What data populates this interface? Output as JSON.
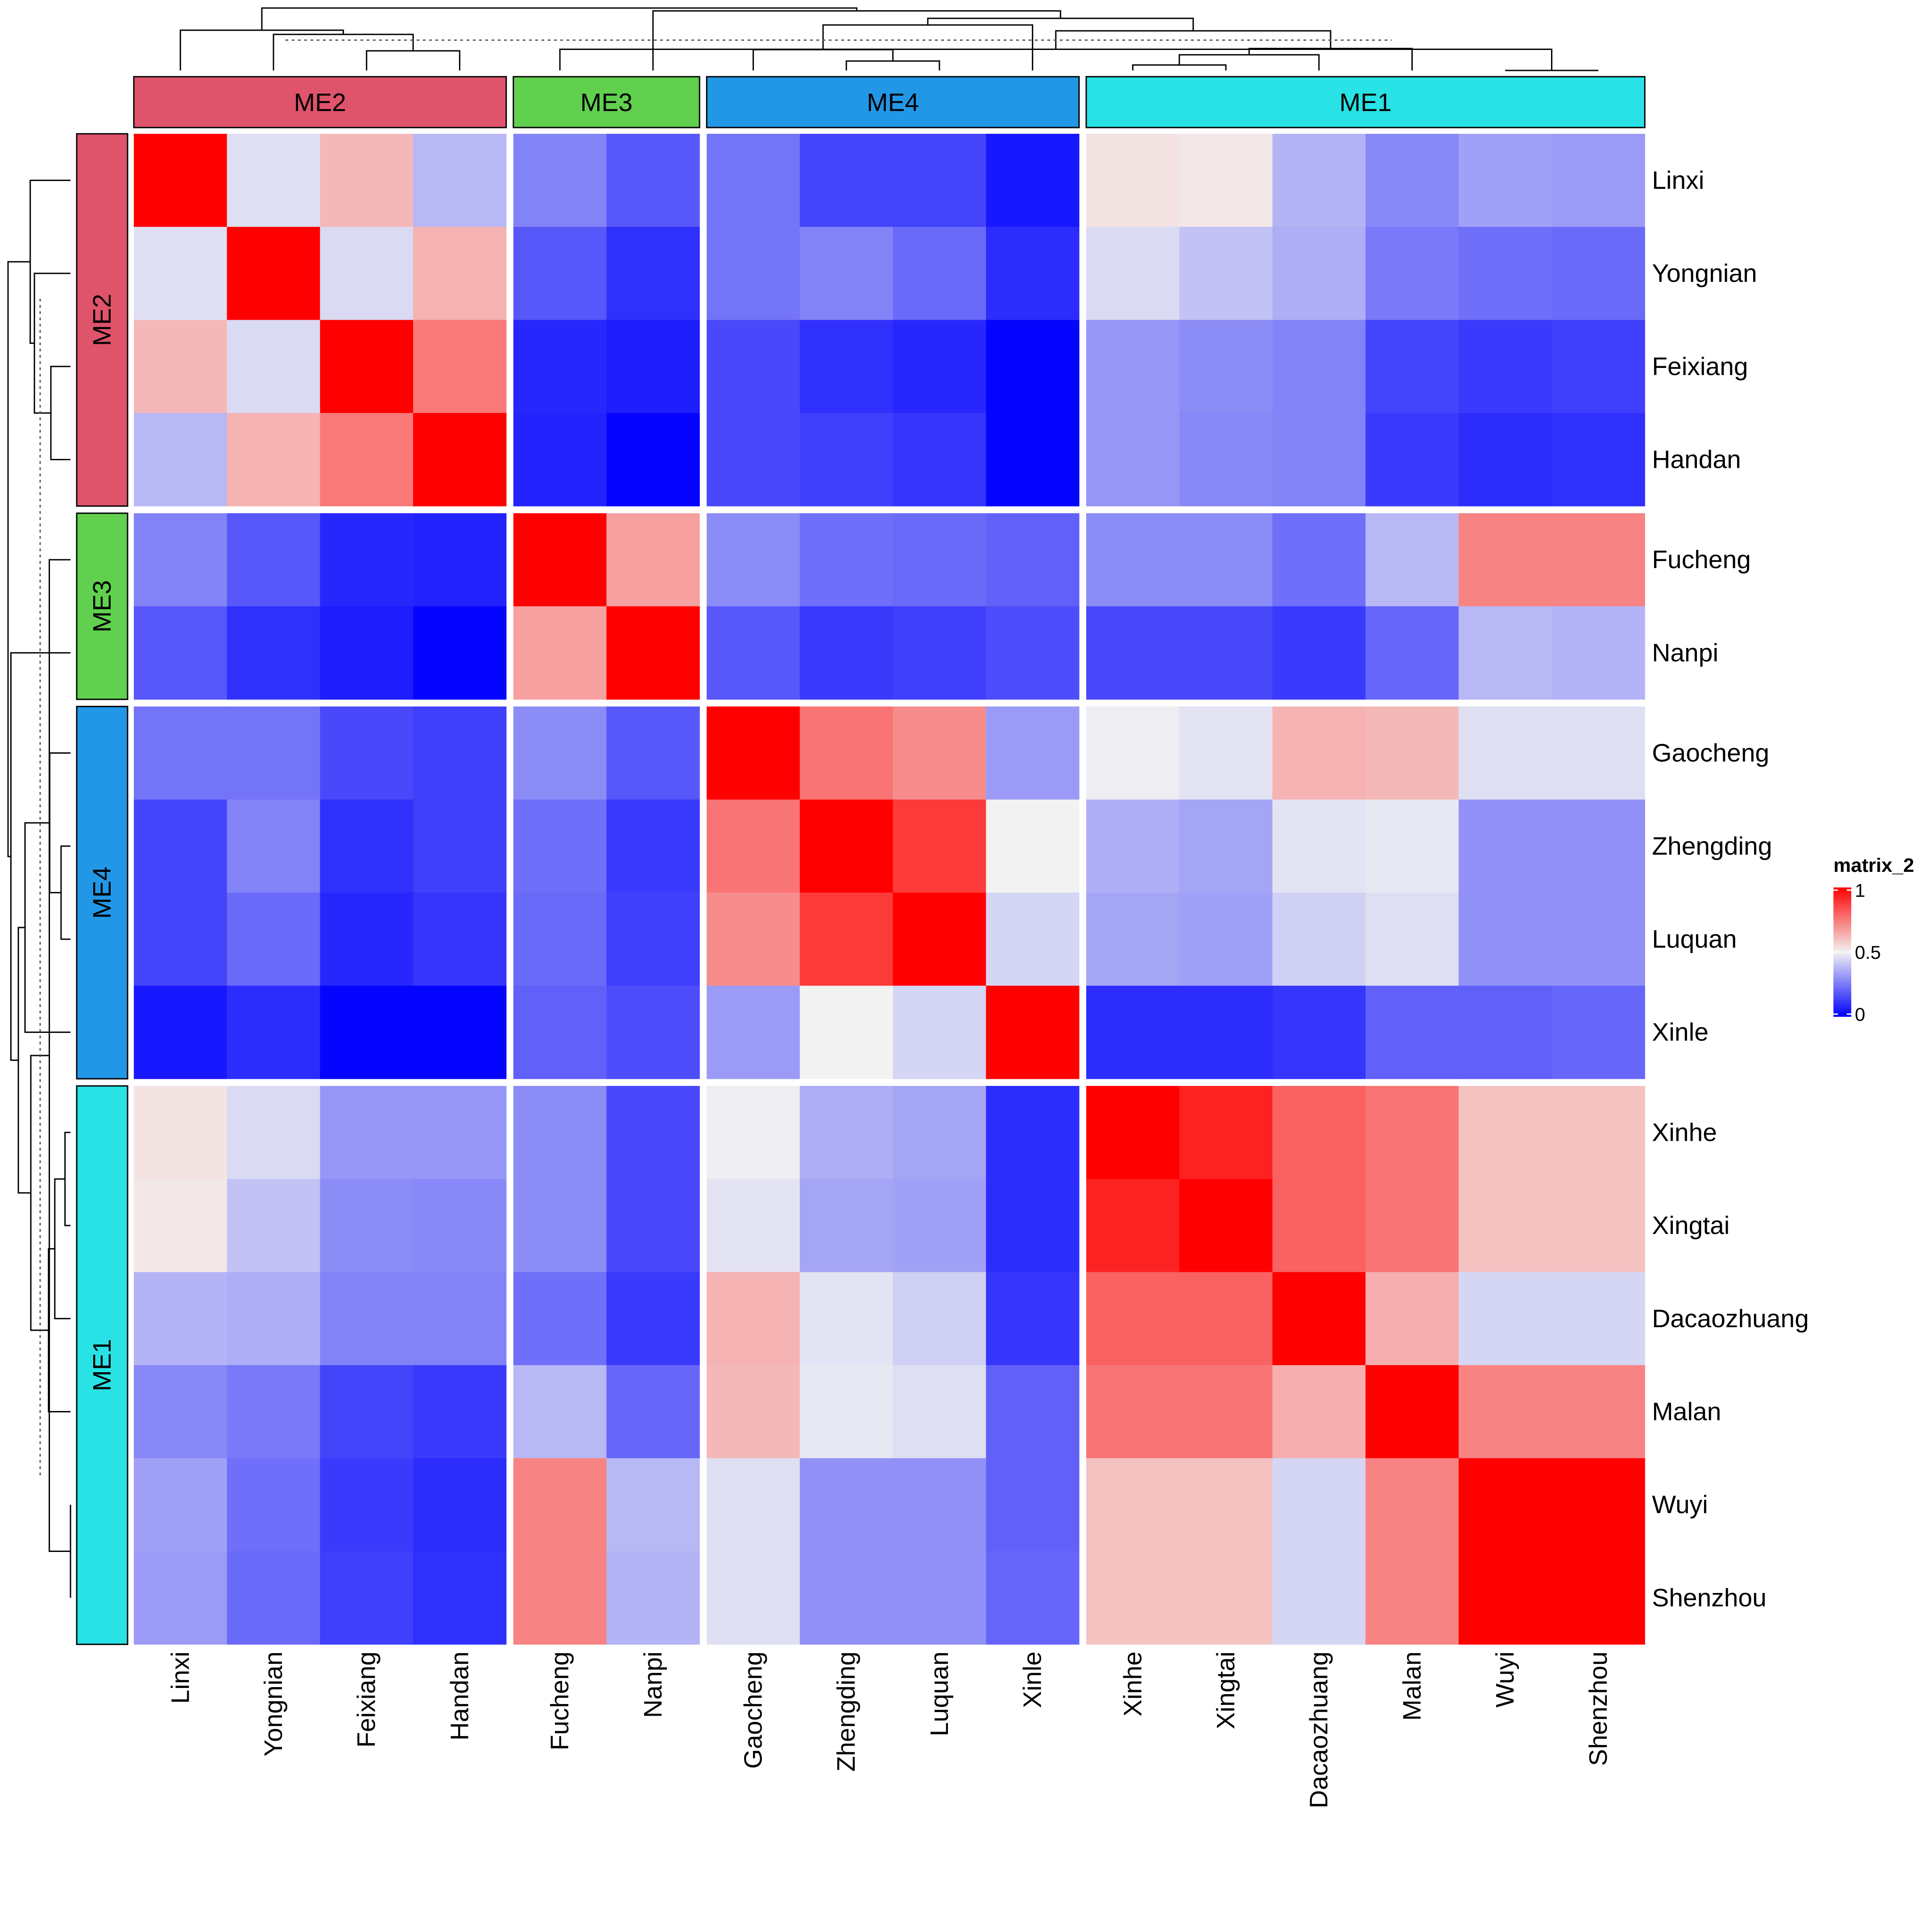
{
  "chart_data": {
    "type": "heatmap",
    "samples": [
      "Linxi",
      "Yongnian",
      "Feixiang",
      "Handan",
      "Fucheng",
      "Nanpi",
      "Gaocheng",
      "Zhengding",
      "Luquan",
      "Xinle",
      "Xinhe",
      "Xingtai",
      "Dacaozhuang",
      "Malan",
      "Wuyi",
      "Shenzhou"
    ],
    "groups": [
      {
        "name": "ME2",
        "color": "#DF536B",
        "members": [
          "Linxi",
          "Yongnian",
          "Feixiang",
          "Handan"
        ]
      },
      {
        "name": "ME3",
        "color": "#61D04F",
        "members": [
          "Fucheng",
          "Nanpi"
        ]
      },
      {
        "name": "ME4",
        "color": "#2297E6",
        "members": [
          "Gaocheng",
          "Zhengding",
          "Luquan",
          "Xinle"
        ]
      },
      {
        "name": "ME1",
        "color": "#28E2E5",
        "members": [
          "Xinhe",
          "Xingtai",
          "Dacaozhuang",
          "Malan",
          "Wuyi",
          "Shenzhou"
        ]
      }
    ],
    "matrix": [
      [
        1.0,
        0.46,
        0.62,
        0.38,
        0.27,
        0.18,
        0.24,
        0.14,
        0.14,
        0.05,
        0.53,
        0.52,
        0.37,
        0.28,
        0.33,
        0.32
      ],
      [
        0.46,
        1.0,
        0.45,
        0.63,
        0.18,
        0.1,
        0.24,
        0.27,
        0.22,
        0.09,
        0.45,
        0.4,
        0.36,
        0.25,
        0.23,
        0.22
      ],
      [
        0.62,
        0.45,
        1.0,
        0.75,
        0.08,
        0.06,
        0.15,
        0.1,
        0.08,
        0.01,
        0.31,
        0.29,
        0.27,
        0.14,
        0.12,
        0.13
      ],
      [
        0.38,
        0.63,
        0.75,
        1.0,
        0.07,
        0.01,
        0.15,
        0.13,
        0.11,
        0.01,
        0.31,
        0.28,
        0.27,
        0.12,
        0.09,
        0.1
      ],
      [
        0.27,
        0.18,
        0.08,
        0.07,
        1.0,
        0.67,
        0.29,
        0.23,
        0.22,
        0.2,
        0.29,
        0.29,
        0.23,
        0.38,
        0.73,
        0.73
      ],
      [
        0.18,
        0.1,
        0.06,
        0.01,
        0.67,
        1.0,
        0.18,
        0.12,
        0.13,
        0.16,
        0.15,
        0.15,
        0.12,
        0.21,
        0.38,
        0.37
      ],
      [
        0.24,
        0.24,
        0.15,
        0.13,
        0.29,
        0.18,
        1.0,
        0.76,
        0.71,
        0.32,
        0.49,
        0.47,
        0.63,
        0.62,
        0.46,
        0.46
      ],
      [
        0.14,
        0.27,
        0.1,
        0.13,
        0.23,
        0.12,
        0.76,
        1.0,
        0.88,
        0.5,
        0.36,
        0.34,
        0.47,
        0.48,
        0.3,
        0.3
      ],
      [
        0.14,
        0.22,
        0.08,
        0.11,
        0.22,
        0.13,
        0.71,
        0.88,
        1.0,
        0.44,
        0.34,
        0.33,
        0.43,
        0.46,
        0.3,
        0.3
      ],
      [
        0.05,
        0.09,
        0.01,
        0.01,
        0.2,
        0.16,
        0.32,
        0.5,
        0.44,
        1.0,
        0.09,
        0.09,
        0.11,
        0.2,
        0.2,
        0.21
      ],
      [
        0.53,
        0.45,
        0.31,
        0.31,
        0.29,
        0.15,
        0.49,
        0.36,
        0.34,
        0.09,
        1.0,
        0.93,
        0.8,
        0.76,
        0.6,
        0.6
      ],
      [
        0.52,
        0.4,
        0.29,
        0.28,
        0.29,
        0.15,
        0.47,
        0.34,
        0.33,
        0.09,
        0.93,
        1.0,
        0.8,
        0.76,
        0.6,
        0.6
      ],
      [
        0.37,
        0.36,
        0.27,
        0.27,
        0.23,
        0.12,
        0.63,
        0.47,
        0.43,
        0.11,
        0.8,
        0.8,
        1.0,
        0.64,
        0.44,
        0.44
      ],
      [
        0.28,
        0.25,
        0.14,
        0.12,
        0.38,
        0.21,
        0.62,
        0.48,
        0.46,
        0.2,
        0.76,
        0.76,
        0.64,
        1.0,
        0.73,
        0.73
      ],
      [
        0.33,
        0.23,
        0.12,
        0.09,
        0.73,
        0.38,
        0.46,
        0.3,
        0.3,
        0.2,
        0.6,
        0.6,
        0.44,
        0.73,
        1.0,
        1.0
      ],
      [
        0.32,
        0.22,
        0.13,
        0.1,
        0.73,
        0.37,
        0.46,
        0.3,
        0.3,
        0.21,
        0.6,
        0.6,
        0.44,
        0.73,
        1.0,
        1.0
      ]
    ],
    "color_scale": {
      "low": "#0000FF",
      "mid": "#F2F2F2",
      "high": "#FF0000",
      "range": [
        0,
        1
      ],
      "midpoint": 0.5
    },
    "legend": {
      "title": "matrix_2",
      "ticks": [
        "1",
        "0.5",
        "0"
      ],
      "position": "right"
    },
    "dendrograms": [
      "top",
      "left"
    ]
  }
}
